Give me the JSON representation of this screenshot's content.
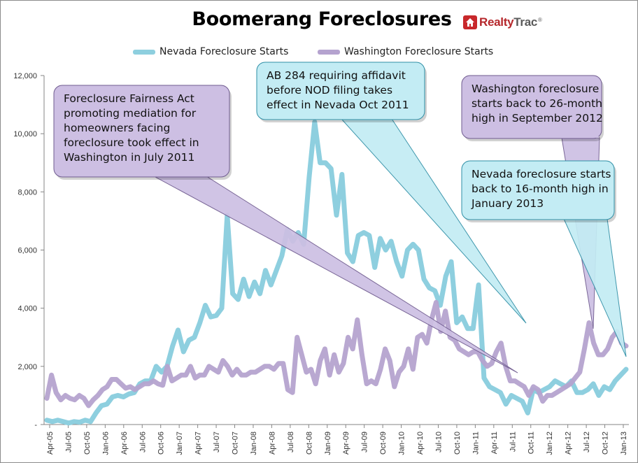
{
  "chart_data": {
    "type": "line",
    "title": "Boomerang Foreclosures",
    "brand": "RealtyTrac",
    "x_tick_labels": [
      "Apr-05",
      "Jul-05",
      "Oct-05",
      "Jan-06",
      "Apr-06",
      "Jul-06",
      "Oct-06",
      "Jan-07",
      "Apr-07",
      "Jul-07",
      "Oct-07",
      "Jan-08",
      "Apr-08",
      "Jul-08",
      "Oct-08",
      "Jan-09",
      "Apr-09",
      "Jul-09",
      "Oct-09",
      "Jan-10",
      "Apr-10",
      "Jul-10",
      "Oct-10",
      "Jan-11",
      "Apr-11",
      "Jul-11",
      "Oct-11",
      "Jan-12",
      "Apr-12",
      "Jul-12",
      "Oct-12",
      "Jan-13"
    ],
    "y_tick_labels": [
      "-",
      "2,000",
      "4,000",
      "6,000",
      "8,000",
      "10,000",
      "12,000"
    ],
    "y_ticks": [
      0,
      2000,
      4000,
      6000,
      8000,
      10000,
      12000
    ],
    "ylim": [
      0,
      12000
    ],
    "series": [
      {
        "name": "Nevada Foreclosure Starts",
        "color": "#8ecfdf",
        "values": [
          150,
          100,
          150,
          100,
          50,
          100,
          80,
          150,
          100,
          400,
          650,
          700,
          950,
          1000,
          950,
          1050,
          1100,
          1400,
          1500,
          1500,
          2000,
          1800,
          2000,
          2700,
          3250,
          2500,
          2900,
          3000,
          3500,
          4100,
          3700,
          3750,
          4000,
          7200,
          4500,
          4300,
          5000,
          4400,
          4900,
          4500,
          5300,
          4800,
          5300,
          5800,
          6700,
          6300,
          6600,
          6200,
          8500,
          10400,
          9000,
          9000,
          8800,
          7200,
          8600,
          5900,
          5600,
          6500,
          6600,
          6500,
          5400,
          6400,
          6000,
          6300,
          5600,
          5100,
          6000,
          6200,
          6000,
          5000,
          4700,
          4600,
          4100,
          5100,
          5600,
          3500,
          3700,
          3300,
          3300,
          4800,
          1600,
          1300,
          1200,
          1100,
          700,
          1000,
          900,
          800,
          400,
          1200,
          1100,
          1200,
          1300,
          1500,
          1400,
          1300,
          1500,
          1100,
          1100,
          1200,
          1400,
          1000,
          1300,
          1200,
          1500,
          1700,
          1900
        ]
      },
      {
        "name": "Washington Foreclosure Starts",
        "color": "#b5a3cf",
        "values": [
          900,
          1700,
          1100,
          850,
          1000,
          900,
          850,
          1000,
          900,
          650,
          850,
          1000,
          1200,
          1300,
          1550,
          1550,
          1400,
          1250,
          1300,
          1200,
          1300,
          1400,
          1400,
          1500,
          1400,
          1350,
          2000,
          1500,
          1600,
          1700,
          1700,
          2000,
          1600,
          1700,
          1700,
          2000,
          1900,
          1800,
          2200,
          2000,
          1700,
          1900,
          1700,
          1700,
          1800,
          1800,
          1900,
          2000,
          2000,
          1900,
          2100,
          2100,
          1200,
          1100,
          3000,
          2400,
          1800,
          1900,
          1400,
          2200,
          2600,
          1700,
          2400,
          1800,
          2100,
          3000,
          2600,
          3600,
          2400,
          1400,
          1500,
          1400,
          1900,
          2600,
          2200,
          1300,
          1800,
          2000,
          2600,
          1900,
          3000,
          3100,
          2800,
          3600,
          4200,
          3200,
          3900,
          3000,
          2900,
          2600,
          2500,
          2400,
          2500,
          2500,
          2200,
          2000,
          2100,
          2500,
          2800,
          2000,
          1500,
          1500,
          1400,
          1300,
          1000,
          1300,
          1200,
          800,
          1000,
          1000,
          1100,
          1200,
          1300,
          1400,
          1600,
          1800,
          2600,
          3500,
          2800,
          2400,
          2400,
          2600,
          3000,
          3200,
          2800,
          2700
        ]
      }
    ],
    "annotations": [
      {
        "text": "Foreclosure Fairness Act promoting mediation for homeowners facing foreclosure took effect in Washington in July 2011",
        "lines": [
          "Foreclosure Fairness Act",
          "promoting mediation for",
          "homeowners facing",
          "foreclosure took effect in",
          "Washington in July 2011"
        ],
        "series": "Washington Foreclosure Starts"
      },
      {
        "text": "AB 284 requiring affidavit before NOD filing takes effect in Nevada Oct 2011",
        "lines": [
          "AB 284 requiring affidavit",
          "before NOD filing takes",
          "effect in Nevada Oct 2011"
        ],
        "series": "Nevada Foreclosure Starts"
      },
      {
        "text": "Washington foreclosure starts back to 26-month high in September 2012",
        "lines": [
          "Washington foreclosure",
          "starts back to 26-month",
          "high in September 2012"
        ],
        "series": "Washington Foreclosure Starts"
      },
      {
        "text": "Nevada foreclosure starts back to 16-month high in January 2013",
        "lines": [
          "Nevada foreclosure starts",
          "back to 16-month high in",
          "January 2013"
        ],
        "series": "Nevada Foreclosure Starts"
      }
    ]
  }
}
